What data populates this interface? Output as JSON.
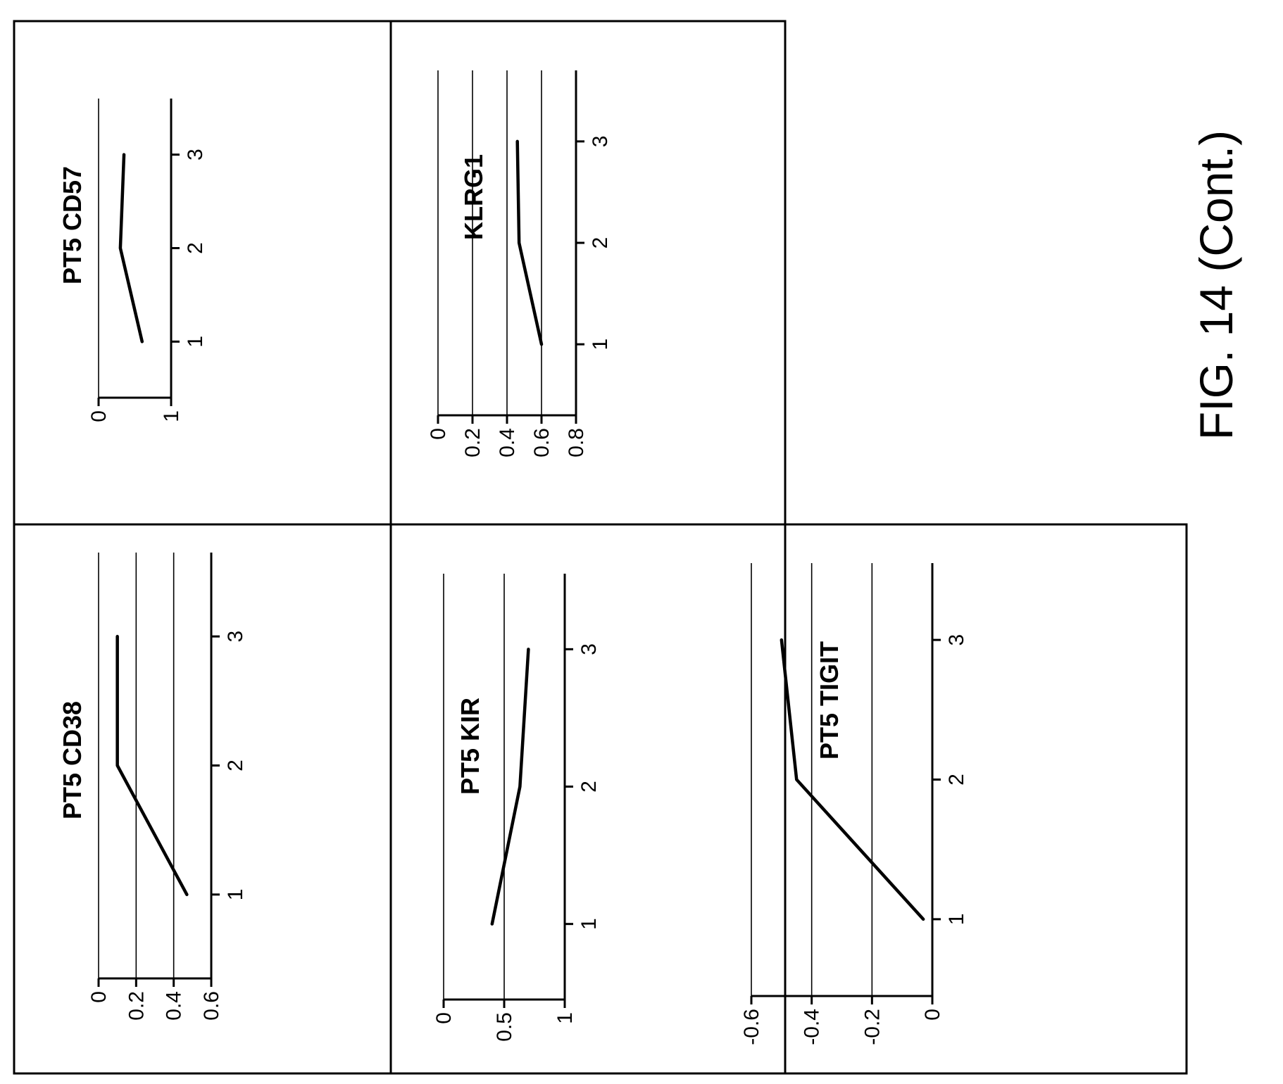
{
  "figure_caption": "FIG. 14 (Cont.)",
  "chart_data": [
    {
      "id": "cd57",
      "type": "line",
      "title": "PT5 CD57",
      "x": [
        1,
        2,
        3
      ],
      "x_ticks": [
        "1",
        "2",
        "3"
      ],
      "xlim": [
        0.4,
        3.6
      ],
      "series": [
        {
          "values": [
            0.6,
            0.3,
            0.35
          ]
        }
      ],
      "ylim": [
        0,
        1
      ],
      "y_ticks": [
        0,
        1
      ],
      "y_tick_labels": [
        "0",
        "1"
      ],
      "grid": true
    },
    {
      "id": "cd38",
      "type": "line",
      "title": "PT5 CD38",
      "x": [
        1,
        2,
        3
      ],
      "x_ticks": [
        "1",
        "2",
        "3"
      ],
      "xlim": [
        0.35,
        3.65
      ],
      "series": [
        {
          "values": [
            0.47,
            0.1,
            0.1
          ]
        }
      ],
      "ylim": [
        0,
        0.6
      ],
      "y_ticks": [
        0,
        0.2,
        0.4,
        0.6
      ],
      "y_tick_labels": [
        "0",
        "0.2",
        "0.4",
        "0.6"
      ],
      "grid": true
    },
    {
      "id": "klrg1",
      "type": "line",
      "title": "KLRG1",
      "x": [
        1,
        2,
        3
      ],
      "x_ticks": [
        "1",
        "2",
        "3"
      ],
      "xlim": [
        0.3,
        3.7
      ],
      "series": [
        {
          "values": [
            0.6,
            0.47,
            0.46
          ]
        }
      ],
      "ylim": [
        0,
        0.8
      ],
      "y_ticks": [
        0,
        0.2,
        0.4,
        0.6,
        0.8
      ],
      "y_tick_labels": [
        "0",
        "0.2",
        "0.4",
        "0.6",
        "0.8"
      ],
      "grid": true
    },
    {
      "id": "kir",
      "type": "line",
      "title": "PT5 KIR",
      "x": [
        1,
        2,
        3
      ],
      "x_ticks": [
        "1",
        "2",
        "3"
      ],
      "xlim": [
        0.45,
        3.55
      ],
      "series": [
        {
          "values": [
            0.4,
            0.63,
            0.7
          ]
        }
      ],
      "ylim": [
        0,
        1
      ],
      "y_ticks": [
        0,
        0.5,
        1
      ],
      "y_tick_labels": [
        "0",
        "0.5",
        "1"
      ],
      "grid": true
    },
    {
      "id": "tigit",
      "type": "line",
      "title": "PT5 TIGIT",
      "x": [
        1,
        2,
        3
      ],
      "x_ticks": [
        "1",
        "2",
        "3"
      ],
      "xlim": [
        0.45,
        3.55
      ],
      "series": [
        {
          "values": [
            -0.03,
            -0.45,
            -0.5
          ]
        }
      ],
      "ylim": [
        -0.6,
        0
      ],
      "y_ticks": [
        0,
        -0.2,
        -0.4,
        -0.6
      ],
      "y_tick_labels": [
        "0",
        "-0.2",
        "-0.4",
        "-0.6"
      ],
      "grid": true
    }
  ]
}
